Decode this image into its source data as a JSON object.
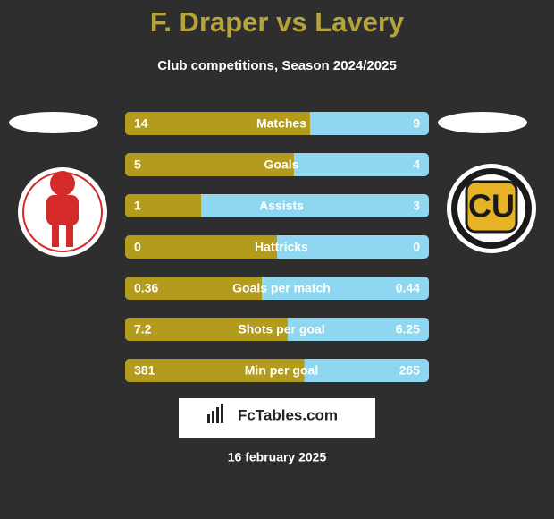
{
  "header": {
    "title": "F. Draper vs Lavery",
    "subtitle": "Club competitions, Season 2024/2025"
  },
  "rows": [
    {
      "label": "Matches",
      "left": 14,
      "right": 9
    },
    {
      "label": "Goals",
      "left": 5,
      "right": 4
    },
    {
      "label": "Assists",
      "left": 1,
      "right": 3
    },
    {
      "label": "Hattricks",
      "left": 0,
      "right": 0
    },
    {
      "label": "Goals per match",
      "left": 0.36,
      "right": 0.44
    },
    {
      "label": "Shots per goal",
      "left": 7.2,
      "right": 6.25
    },
    {
      "label": "Min per goal",
      "left": 381,
      "right": 265
    }
  ],
  "brand": "FcTables.com",
  "date": "16 february 2025"
}
